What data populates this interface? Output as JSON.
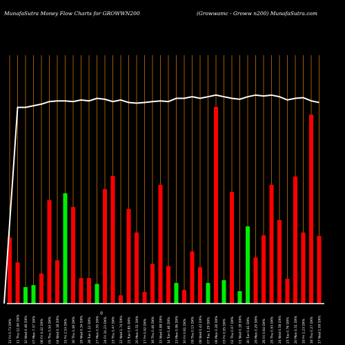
{
  "header": {
    "left": "MunafaSutra  Money Flow  Charts for GROWWN200",
    "right": "(Growwamc -   Groww n200) MunafaSutra.com"
  },
  "chart_data": {
    "type": "bar",
    "title": "MunafaSutra  Money Flow  Charts for GROWWN200",
    "subtitle": "(Growwamc -   Groww n200) MunafaSutra.com",
    "ylim": [
      0,
      100
    ],
    "grid": "vertical",
    "gridColor": "#a05a00",
    "axisLabel": "0",
    "categories": [
      "12 Fri 0.73 DX%",
      "11 Thu 12.84 DX%",
      "10 Wed 0.46 DX%",
      "07 Mon 7.37 DX%",
      "06 Fri 4.42 DX%",
      "05 Thu 3.54 DX%",
      "04 Wed 0.18 DX%",
      "31 Fri 2.53 DX%",
      "30 Thu 1.48 DX%",
      "29 Wed 0.34 DX%",
      "28 Tue 1.12 DX%",
      "27 Mon 0.55 DX%",
      "24 Fri 10.23 DX%",
      "23 Thu 1.47 DX%",
      "22 Wed 1.74 DX%",
      "21 Tue 0.85 DX%",
      "20 Mon 0.51 DX%",
      "17 Fri 0.92 DX%",
      "16 Thu 0.46 DX%",
      "15 Wed 0.88 DX%",
      "14 Tue 0.46 DX%",
      "13 Mon 0.96 DX%",
      "10 Fri 0.61 DX%",
      "09 Thu 0.13 DX%",
      "08 Wed 0.42 DX%",
      "07 Tue 1.29 DX%",
      "06 Mon 0.28 DX%",
      "03 Fri 0.95 DX%",
      "02 Thu 0.07 DX%",
      "01 Wed 0.18 DX%",
      "30 Tue 0.41 DX%",
      "29 Mon 0.29 DX%",
      "26 Fri 0.64 DX%",
      "25 Thu 0.93 DX%",
      "24 Wed 0.58 DX%",
      "23 Tue 0.76 DX%",
      "20 Mon 0.51 DX%",
      "19 Fri 1.23 DX%",
      "18 Thu 0.27 DX%",
      "17 Wed 1.09 DX%"
    ],
    "bars": [
      {
        "value": 33.5,
        "color": "red"
      },
      {
        "value": 20.9,
        "color": "red"
      },
      {
        "value": 8.4,
        "color": "green"
      },
      {
        "value": 9.4,
        "color": "green"
      },
      {
        "value": 15.3,
        "color": "red"
      },
      {
        "value": 52.6,
        "color": "red"
      },
      {
        "value": 22.0,
        "color": "red"
      },
      {
        "value": 56.1,
        "color": "green"
      },
      {
        "value": 49.1,
        "color": "red"
      },
      {
        "value": 13.0,
        "color": "red"
      },
      {
        "value": 13.0,
        "color": "red"
      },
      {
        "value": 10.0,
        "color": "green"
      },
      {
        "value": 58.2,
        "color": "red"
      },
      {
        "value": 64.9,
        "color": "red"
      },
      {
        "value": 4.2,
        "color": "red"
      },
      {
        "value": 48.1,
        "color": "red"
      },
      {
        "value": 36.1,
        "color": "red"
      },
      {
        "value": 5.9,
        "color": "red"
      },
      {
        "value": 20.2,
        "color": "red"
      },
      {
        "value": 60.4,
        "color": "red"
      },
      {
        "value": 19.1,
        "color": "red"
      },
      {
        "value": 10.5,
        "color": "green"
      },
      {
        "value": 6.9,
        "color": "red"
      },
      {
        "value": 26.5,
        "color": "red"
      },
      {
        "value": 18.5,
        "color": "red"
      },
      {
        "value": 10.5,
        "color": "green"
      },
      {
        "value": 100.0,
        "color": "red"
      },
      {
        "value": 11.9,
        "color": "green"
      },
      {
        "value": 56.8,
        "color": "red"
      },
      {
        "value": 6.3,
        "color": "green"
      },
      {
        "value": 39.3,
        "color": "green"
      },
      {
        "value": 23.5,
        "color": "red"
      },
      {
        "value": 34.7,
        "color": "red"
      },
      {
        "value": 60.4,
        "color": "red"
      },
      {
        "value": 42.5,
        "color": "red"
      },
      {
        "value": 12.6,
        "color": "red"
      },
      {
        "value": 64.6,
        "color": "red"
      },
      {
        "value": 36.1,
        "color": "red"
      },
      {
        "value": 96.1,
        "color": "red"
      },
      {
        "value": 34.4,
        "color": "red"
      }
    ],
    "line": [
      0,
      84.9,
      84.9,
      85.6,
      86.3,
      87.4,
      87.7,
      87.7,
      87.4,
      88.1,
      87.7,
      88.8,
      88.4,
      87.4,
      88.1,
      87.0,
      86.7,
      87.0,
      87.4,
      87.7,
      87.4,
      88.8,
      88.8,
      89.5,
      88.8,
      89.5,
      90.2,
      89.5,
      88.8,
      88.4,
      89.5,
      90.2,
      89.8,
      90.2,
      89.5,
      88.1,
      88.8,
      89.1,
      87.7,
      87.0
    ]
  }
}
